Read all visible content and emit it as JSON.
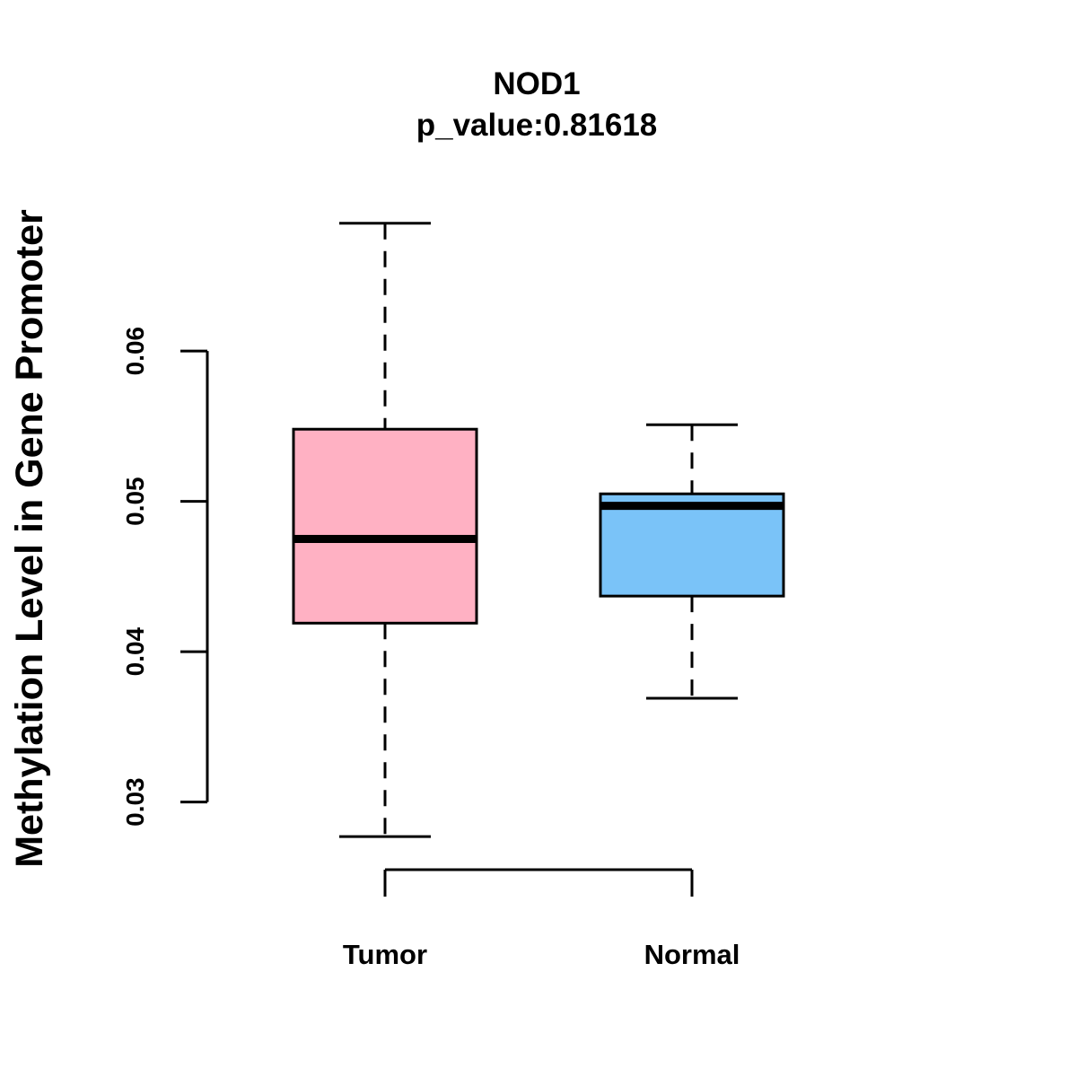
{
  "chart_data": {
    "type": "boxplot",
    "title": "NOD1",
    "subtitle": "p_value:0.81618",
    "xlabel": "",
    "ylabel": "Methylation Level in Gene Promoter",
    "ylim": [
      0.0255,
      0.0695
    ],
    "y_ticks": [
      0.03,
      0.04,
      0.05,
      0.06
    ],
    "y_tick_labels": [
      "0.03",
      "0.04",
      "0.05",
      "0.06"
    ],
    "categories": [
      "Tumor",
      "Normal"
    ],
    "boxes": [
      {
        "name": "Tumor",
        "whisker_low": 0.0277,
        "q1": 0.0419,
        "median": 0.0475,
        "q3": 0.0548,
        "whisker_high": 0.0685,
        "color": "#FFB1C3"
      },
      {
        "name": "Normal",
        "whisker_low": 0.0369,
        "q1": 0.0437,
        "median": 0.0497,
        "q3": 0.0505,
        "whisker_high": 0.0551,
        "color": "#7AC3F8"
      }
    ],
    "grid": false,
    "legend": "none"
  }
}
